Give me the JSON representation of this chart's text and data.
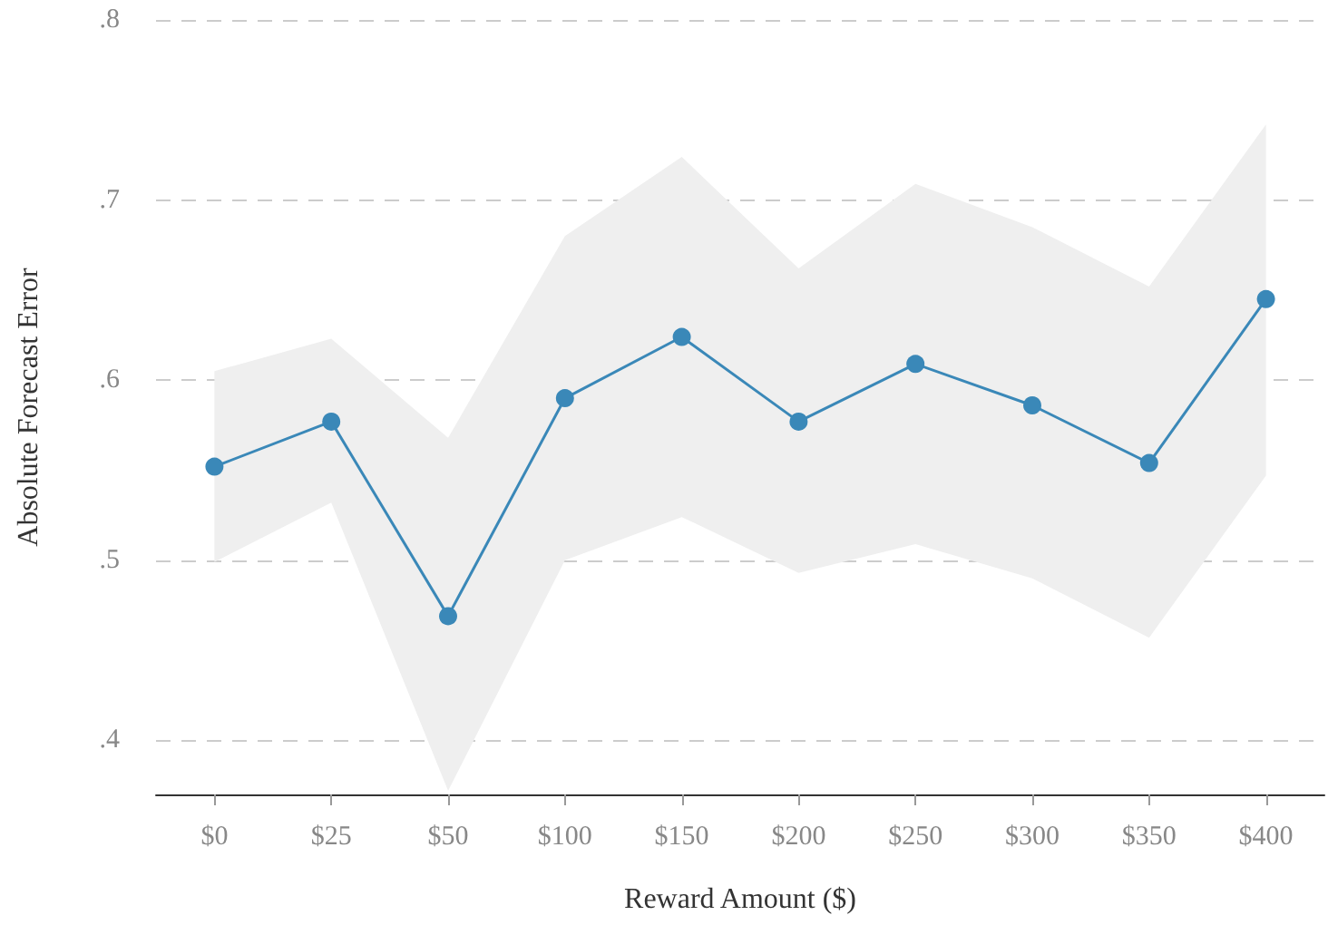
{
  "chart_data": {
    "type": "line",
    "xlabel": "Reward Amount ($)",
    "ylabel": "Absolute Forecast Error",
    "categories": [
      "$0",
      "$25",
      "$50",
      "$100",
      "$150",
      "$200",
      "$250",
      "$300",
      "$350",
      "$400"
    ],
    "series": [
      {
        "color": "#3a88b8",
        "values": [
          0.552,
          0.577,
          0.469,
          0.59,
          0.624,
          0.577,
          0.609,
          0.586,
          0.554,
          0.645
        ],
        "lower": [
          0.499,
          0.532,
          0.372,
          0.5,
          0.524,
          0.493,
          0.509,
          0.49,
          0.457,
          0.547
        ],
        "upper": [
          0.605,
          0.623,
          0.568,
          0.68,
          0.724,
          0.662,
          0.709,
          0.685,
          0.652,
          0.742
        ]
      }
    ],
    "ylim": [
      0.37,
      0.8
    ],
    "yticks": [
      {
        "value": 0.4,
        "label": ".4"
      },
      {
        "value": 0.5,
        "label": ".5"
      },
      {
        "value": 0.6,
        "label": ".6"
      },
      {
        "value": 0.7,
        "label": ".7"
      },
      {
        "value": 0.8,
        "label": ".8"
      }
    ],
    "grid": "y",
    "marker": "circle",
    "line_style": "solid"
  }
}
